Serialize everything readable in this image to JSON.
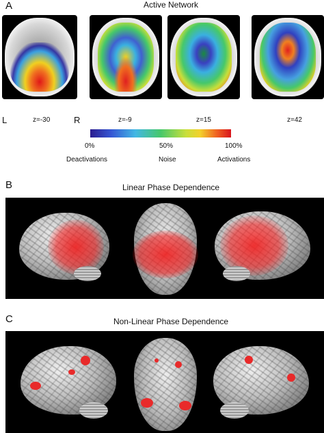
{
  "panel_a": {
    "letter": "A",
    "title": "Active Network",
    "left_label": "L",
    "right_label": "R",
    "slices": [
      "z=-30",
      "z=-9",
      "z=15",
      "z=42"
    ],
    "colorbar": {
      "ticks": [
        "0%",
        "50%",
        "100%"
      ],
      "labels": [
        "Deactivations",
        "Noise",
        "Activations"
      ]
    }
  },
  "panel_b": {
    "letter": "B",
    "title": "Linear Phase Dependence"
  },
  "panel_c": {
    "letter": "C",
    "title": "Non-Linear Phase Dependence"
  }
}
